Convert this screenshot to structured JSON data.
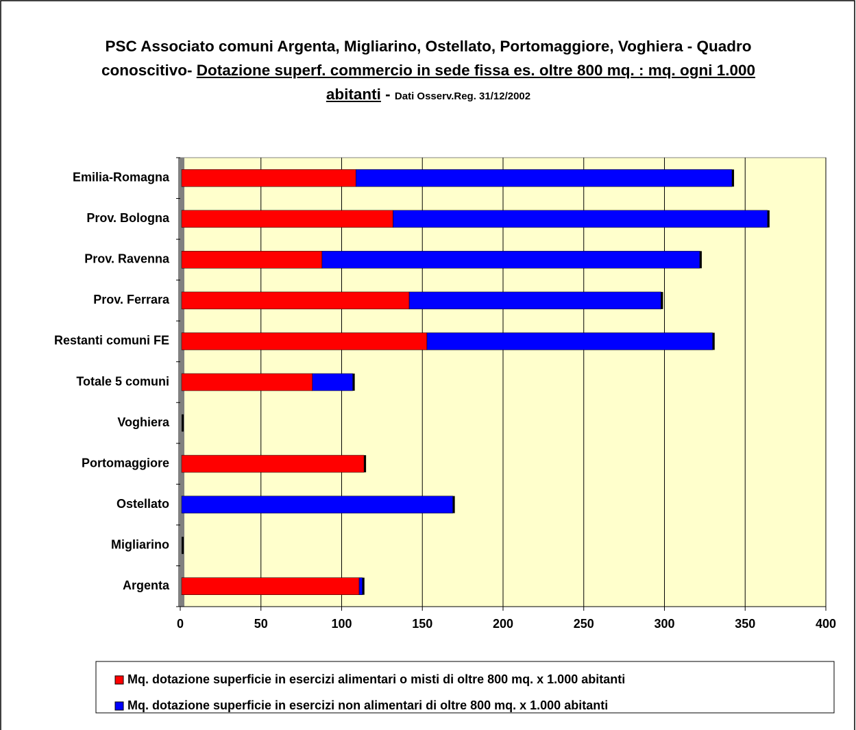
{
  "chart_data": {
    "type": "stacked_barh",
    "title": [
      "PSC Associato comuni Argenta, Migliarino, Ostellato, Portomaggiore, Voghiera - Quadro conoscitivo-",
      "Dotazione superf. commercio in sede fissa es. oltre  800 mq. : mq. ogni 1.000 abitanti",
      "-",
      "Dati Osserv.Reg. 31/12/2002"
    ],
    "categories": [
      "Emilia-Romagna",
      "Prov. Bologna",
      "Prov. Ravenna",
      "Prov. Ferrara",
      "Restanti comuni FE",
      "Totale 5 comuni",
      "Voghiera",
      "Portomaggiore",
      "Ostellato",
      "Migliarino",
      "Argenta"
    ],
    "series": [
      {
        "name": "Mq. dotazione superficie in esercizi alimentari o misti di oltre 800 mq. x 1.000 abitanti",
        "color": "#ff0000",
        "values": [
          108,
          131,
          87,
          141,
          152,
          81,
          0,
          113,
          0,
          0,
          110
        ]
      },
      {
        "name": "Mq. dotazione superficie in esercizi non alimentari di oltre 800 mq. x 1.000 abitanti",
        "color": "#0000ff",
        "values": [
          233,
          232,
          234,
          156,
          177,
          25,
          0,
          0,
          168,
          0,
          2
        ]
      }
    ],
    "xlim": [
      0,
      400
    ],
    "xticks": [
      0,
      50,
      100,
      150,
      200,
      250,
      300,
      350,
      400
    ],
    "grid": true,
    "plot_background": "#ffffcc",
    "legend": "bottom"
  }
}
